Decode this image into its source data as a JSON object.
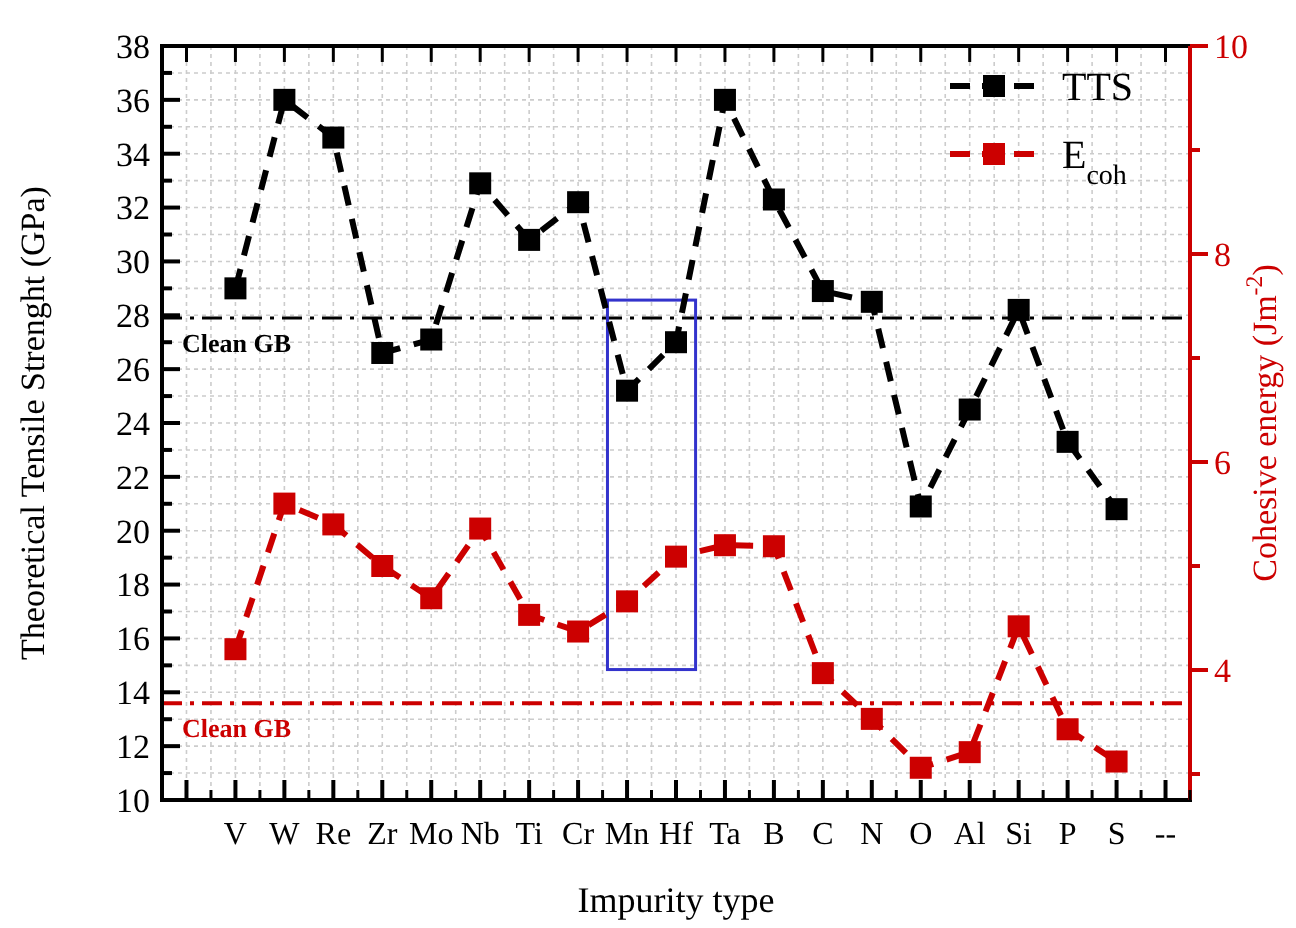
{
  "chart_data": {
    "type": "line",
    "xlabel": "Impurity type",
    "ylabel": "Theoretical Tensile Strenght (GPa)",
    "y2label": "Cohesive energy (Jm$^{-2}$)",
    "categories": [
      null,
      "V",
      "W",
      "Re",
      "Zr",
      "Mo",
      "Nb",
      "Ti",
      "Cr",
      "Mn",
      "Hf",
      "Ta",
      "B",
      "C",
      "N",
      "O",
      "Al",
      "Si",
      "P",
      "S",
      "--"
    ],
    "series": [
      {
        "name": "TTS",
        "color": "#000000",
        "values": [
          null,
          29.0,
          36.0,
          34.6,
          26.6,
          27.1,
          32.9,
          30.8,
          32.2,
          25.2,
          27.0,
          36.0,
          32.3,
          28.9,
          28.5,
          20.9,
          24.5,
          28.2,
          23.3,
          20.8,
          null
        ]
      },
      {
        "name": "E$_{coh}$",
        "color": "#cc0000",
        "axis": "y2",
        "values": [
          null,
          4.2,
          5.6,
          5.4,
          5.0,
          4.69,
          5.36,
          4.53,
          4.37,
          4.66,
          5.09,
          5.2,
          5.19,
          3.97,
          3.53,
          3.06,
          3.21,
          4.42,
          3.43,
          3.12,
          null
        ]
      }
    ],
    "ylim": [
      10,
      38
    ],
    "yticks": [
      10,
      {
        "value": 11,
        "label": null
      },
      12,
      {
        "value": 13,
        "label": null
      },
      14,
      {
        "value": 15,
        "label": null
      },
      16,
      {
        "value": 17,
        "label": null
      },
      18,
      {
        "value": 19,
        "label": null
      },
      20,
      {
        "value": 21,
        "label": null
      },
      22,
      {
        "value": 23,
        "label": null
      },
      24,
      {
        "value": 25,
        "label": null
      },
      26,
      {
        "value": 27,
        "label": null
      },
      28,
      {
        "value": 29,
        "label": null
      },
      30,
      {
        "value": 31,
        "label": null
      },
      32,
      {
        "value": 33,
        "label": null
      },
      34,
      {
        "value": 35,
        "label": null
      },
      36,
      {
        "value": 37,
        "label": null
      },
      38
    ],
    "y2lim": [
      2.75,
      10
    ],
    "y2ticks": [
      {
        "value": 3,
        "label": null
      },
      4,
      {
        "value": 5,
        "label": null
      },
      6,
      {
        "value": 7,
        "label": null
      },
      8,
      {
        "value": 9,
        "label": null
      },
      10
    ],
    "ref_lines": [
      {
        "axis": "y",
        "value": 27.9,
        "label": "Clean GB",
        "color": "#000000",
        "line_style": "dashdot"
      },
      {
        "axis": "y2",
        "value": 3.68,
        "label": "Clean GB",
        "color": "#cc0000",
        "line_style": "dashdot"
      }
    ],
    "grid": true,
    "legend": "top right",
    "marker": "square",
    "line_style": "dashed"
  }
}
